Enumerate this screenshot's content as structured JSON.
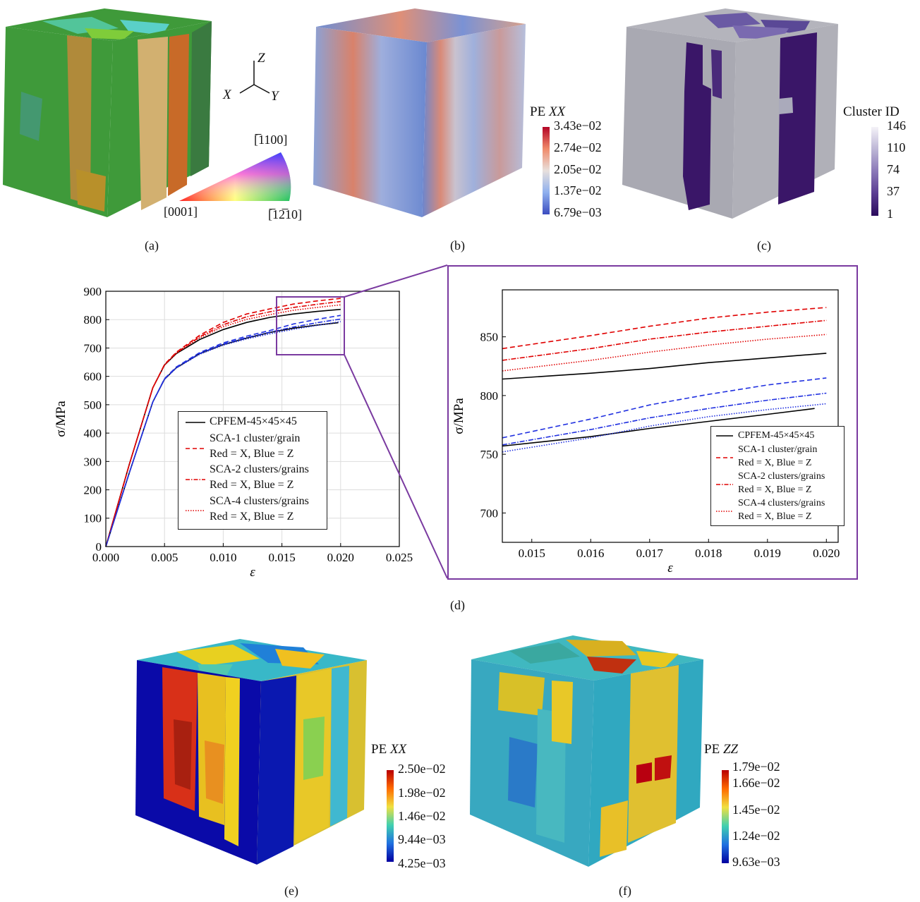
{
  "panels": {
    "a": {
      "label": "(a)",
      "axes": {
        "z": "Z",
        "x": "X",
        "y": "Y"
      },
      "ipf_labels": {
        "top": "[̅1100]",
        "left": "[0001]",
        "right": "[̅12̅10]"
      }
    },
    "b": {
      "label": "(b)",
      "colorbar": {
        "title_prefix": "PE ",
        "title_var": "XX",
        "ticks": [
          "3.43e−02",
          "2.74e−02",
          "2.05e−02",
          "1.37e−02",
          "6.79e−03"
        ]
      }
    },
    "c": {
      "label": "(c)",
      "colorbar": {
        "title": "Cluster ID",
        "ticks": [
          "146",
          "110",
          "74",
          "37",
          "1"
        ]
      }
    },
    "d": {
      "label": "(d)"
    },
    "e": {
      "label": "(e)",
      "colorbar": {
        "title_prefix": "PE ",
        "title_var": "XX",
        "ticks": [
          "2.50e−02",
          "1.98e−02",
          "1.46e−02",
          "9.44e−03",
          "4.25e−03"
        ]
      }
    },
    "f": {
      "label": "(f)",
      "colorbar": {
        "title_prefix": "PE ",
        "title_var": "ZZ",
        "ticks": [
          "1.79e−02",
          "1.66e−02",
          "1.45e−02",
          "1.24e−02",
          "9.63e−03"
        ]
      }
    }
  },
  "legend": {
    "entries": [
      {
        "line1": "CPFEM-45×45×45",
        "line2": ""
      },
      {
        "line1": "SCA-1 cluster/grain",
        "line2": "Red = X, Blue = Z"
      },
      {
        "line1": "SCA-2 clusters/grains",
        "line2": "Red = X, Blue = Z"
      },
      {
        "line1": "SCA-4 clusters/grains",
        "line2": "Red = X, Blue = Z"
      }
    ]
  },
  "chart_data": [
    {
      "type": "line",
      "xlabel": "ε",
      "ylabel": "σ/MPa",
      "xlim": [
        0,
        0.025
      ],
      "ylim": [
        0,
        900
      ],
      "xticks": [
        "0.000",
        "0.005",
        "0.010",
        "0.015",
        "0.020",
        "0.025"
      ],
      "yticks": [
        "0",
        "100",
        "200",
        "300",
        "400",
        "500",
        "600",
        "700",
        "800",
        "900"
      ],
      "grid": true,
      "legend_position": "center-right",
      "series": [
        {
          "name": "CPFEM-45×45×45",
          "color": "#000000",
          "style": "solid",
          "direction": "X",
          "x": [
            0,
            0.002,
            0.004,
            0.005,
            0.006,
            0.008,
            0.01,
            0.012,
            0.014,
            0.016,
            0.018,
            0.02
          ],
          "y": [
            0,
            290,
            560,
            640,
            680,
            730,
            765,
            790,
            808,
            820,
            829,
            836
          ]
        },
        {
          "name": "CPFEM-45×45×45",
          "color": "#000000",
          "style": "solid",
          "direction": "Z",
          "x": [
            0,
            0.002,
            0.004,
            0.005,
            0.006,
            0.008,
            0.01,
            0.012,
            0.014,
            0.016,
            0.018,
            0.0198
          ],
          "y": [
            0,
            260,
            510,
            590,
            630,
            680,
            712,
            735,
            755,
            770,
            781,
            789
          ]
        },
        {
          "name": "SCA-1 cluster/grain",
          "color": "#e00000",
          "style": "dashed",
          "direction": "X",
          "x": [
            0,
            0.002,
            0.004,
            0.005,
            0.006,
            0.008,
            0.01,
            0.012,
            0.014,
            0.016,
            0.018,
            0.02
          ],
          "y": [
            0,
            290,
            560,
            642,
            685,
            745,
            790,
            820,
            838,
            855,
            866,
            875
          ]
        },
        {
          "name": "SCA-1 cluster/grain",
          "color": "#2030e0",
          "style": "dashed",
          "direction": "Z",
          "x": [
            0,
            0.002,
            0.004,
            0.005,
            0.006,
            0.008,
            0.01,
            0.012,
            0.014,
            0.016,
            0.018,
            0.02
          ],
          "y": [
            0,
            260,
            510,
            592,
            633,
            684,
            718,
            742,
            762,
            785,
            801,
            815
          ]
        },
        {
          "name": "SCA-2 clusters/grains",
          "color": "#e00000",
          "style": "dashdot",
          "direction": "X",
          "x": [
            0,
            0.002,
            0.004,
            0.005,
            0.006,
            0.008,
            0.01,
            0.012,
            0.014,
            0.016,
            0.018,
            0.02
          ],
          "y": [
            0,
            290,
            560,
            641,
            683,
            740,
            782,
            810,
            828,
            843,
            854,
            864
          ]
        },
        {
          "name": "SCA-2 clusters/grains",
          "color": "#2030e0",
          "style": "dashdot",
          "direction": "Z",
          "x": [
            0,
            0.002,
            0.004,
            0.005,
            0.006,
            0.008,
            0.01,
            0.012,
            0.014,
            0.016,
            0.018,
            0.02
          ],
          "y": [
            0,
            260,
            510,
            591,
            631,
            681,
            714,
            737,
            756,
            774,
            789,
            802
          ]
        },
        {
          "name": "SCA-4 clusters/grains",
          "color": "#e00000",
          "style": "dotted",
          "direction": "X",
          "x": [
            0,
            0.002,
            0.004,
            0.005,
            0.006,
            0.008,
            0.01,
            0.012,
            0.014,
            0.016,
            0.018,
            0.02
          ],
          "y": [
            0,
            290,
            560,
            640,
            681,
            736,
            775,
            801,
            818,
            833,
            843,
            852
          ]
        },
        {
          "name": "SCA-4 clusters/grains",
          "color": "#2030e0",
          "style": "dotted",
          "direction": "Z",
          "x": [
            0,
            0.002,
            0.004,
            0.005,
            0.006,
            0.008,
            0.01,
            0.012,
            0.014,
            0.016,
            0.018,
            0.02
          ],
          "y": [
            0,
            260,
            510,
            590,
            629,
            678,
            710,
            732,
            750,
            766,
            780,
            793
          ]
        }
      ]
    },
    {
      "type": "line",
      "xlabel": "ε",
      "ylabel": "σ/MPa",
      "xlim": [
        0.0145,
        0.0202
      ],
      "ylim": [
        675,
        890
      ],
      "xticks": [
        "0.015",
        "0.016",
        "0.017",
        "0.018",
        "0.019",
        "0.020"
      ],
      "yticks": [
        "700",
        "750",
        "800",
        "850"
      ],
      "grid": false,
      "legend_position": "bottom-right",
      "series": [
        {
          "name": "CPFEM-45×45×45",
          "color": "#000000",
          "style": "solid",
          "direction": "X",
          "x": [
            0.0145,
            0.016,
            0.017,
            0.018,
            0.019,
            0.02
          ],
          "y": [
            814,
            819,
            823,
            828,
            832,
            836
          ]
        },
        {
          "name": "CPFEM-45×45×45",
          "color": "#000000",
          "style": "solid",
          "direction": "Z",
          "x": [
            0.0145,
            0.016,
            0.017,
            0.018,
            0.019,
            0.0198
          ],
          "y": [
            757,
            765,
            772,
            778,
            784,
            789
          ]
        },
        {
          "name": "SCA-1 cluster/grain",
          "color": "#e00000",
          "style": "dashed",
          "direction": "X",
          "x": [
            0.0145,
            0.016,
            0.017,
            0.018,
            0.019,
            0.02
          ],
          "y": [
            840,
            851,
            859,
            866,
            871,
            875
          ]
        },
        {
          "name": "SCA-1 cluster/grain",
          "color": "#2030e0",
          "style": "dashed",
          "direction": "Z",
          "x": [
            0.0145,
            0.016,
            0.017,
            0.018,
            0.019,
            0.02
          ],
          "y": [
            764,
            780,
            792,
            801,
            809,
            815
          ]
        },
        {
          "name": "SCA-2 clusters/grains",
          "color": "#e00000",
          "style": "dashdot",
          "direction": "X",
          "x": [
            0.0145,
            0.016,
            0.017,
            0.018,
            0.019,
            0.02
          ],
          "y": [
            830,
            840,
            848,
            854,
            859,
            864
          ]
        },
        {
          "name": "SCA-2 clusters/grains",
          "color": "#2030e0",
          "style": "dashdot",
          "direction": "Z",
          "x": [
            0.0145,
            0.016,
            0.017,
            0.018,
            0.019,
            0.02
          ],
          "y": [
            758,
            771,
            781,
            789,
            796,
            802
          ]
        },
        {
          "name": "SCA-4 clusters/grains",
          "color": "#e00000",
          "style": "dotted",
          "direction": "X",
          "x": [
            0.0145,
            0.016,
            0.017,
            0.018,
            0.019,
            0.02
          ],
          "y": [
            821,
            830,
            837,
            843,
            848,
            852
          ]
        },
        {
          "name": "SCA-4 clusters/grains",
          "color": "#2030e0",
          "style": "dotted",
          "direction": "Z",
          "x": [
            0.0145,
            0.016,
            0.017,
            0.018,
            0.019,
            0.02
          ],
          "y": [
            752,
            764,
            774,
            782,
            788,
            793
          ]
        }
      ]
    }
  ]
}
